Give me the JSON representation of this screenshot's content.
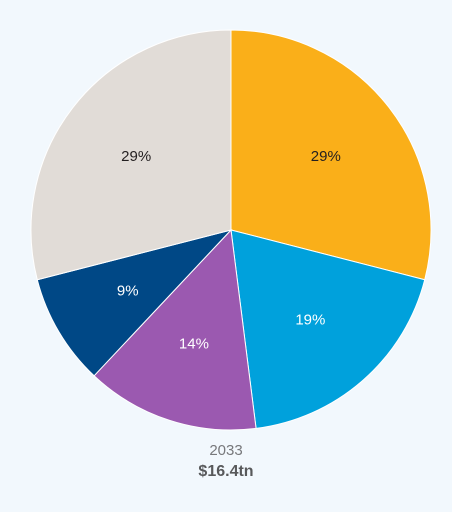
{
  "chart_data": {
    "type": "pie",
    "title": "",
    "start_angle_deg": 0,
    "direction": "clockwise",
    "slices": [
      {
        "label": "29%",
        "value": 29,
        "color": "#faaf19"
      },
      {
        "label": "19%",
        "value": 19,
        "color": "#00a1dc"
      },
      {
        "label": "14%",
        "value": 14,
        "color": "#9b59b0"
      },
      {
        "label": "9%",
        "value": 9,
        "color": "#004886"
      },
      {
        "label": "29%",
        "value": 29,
        "color": "#e1dcd7"
      }
    ],
    "label_colors": {
      "dark": "#231f20",
      "light": "#ffffff"
    }
  },
  "caption": {
    "year": "2033",
    "total": "$16.4tn"
  }
}
